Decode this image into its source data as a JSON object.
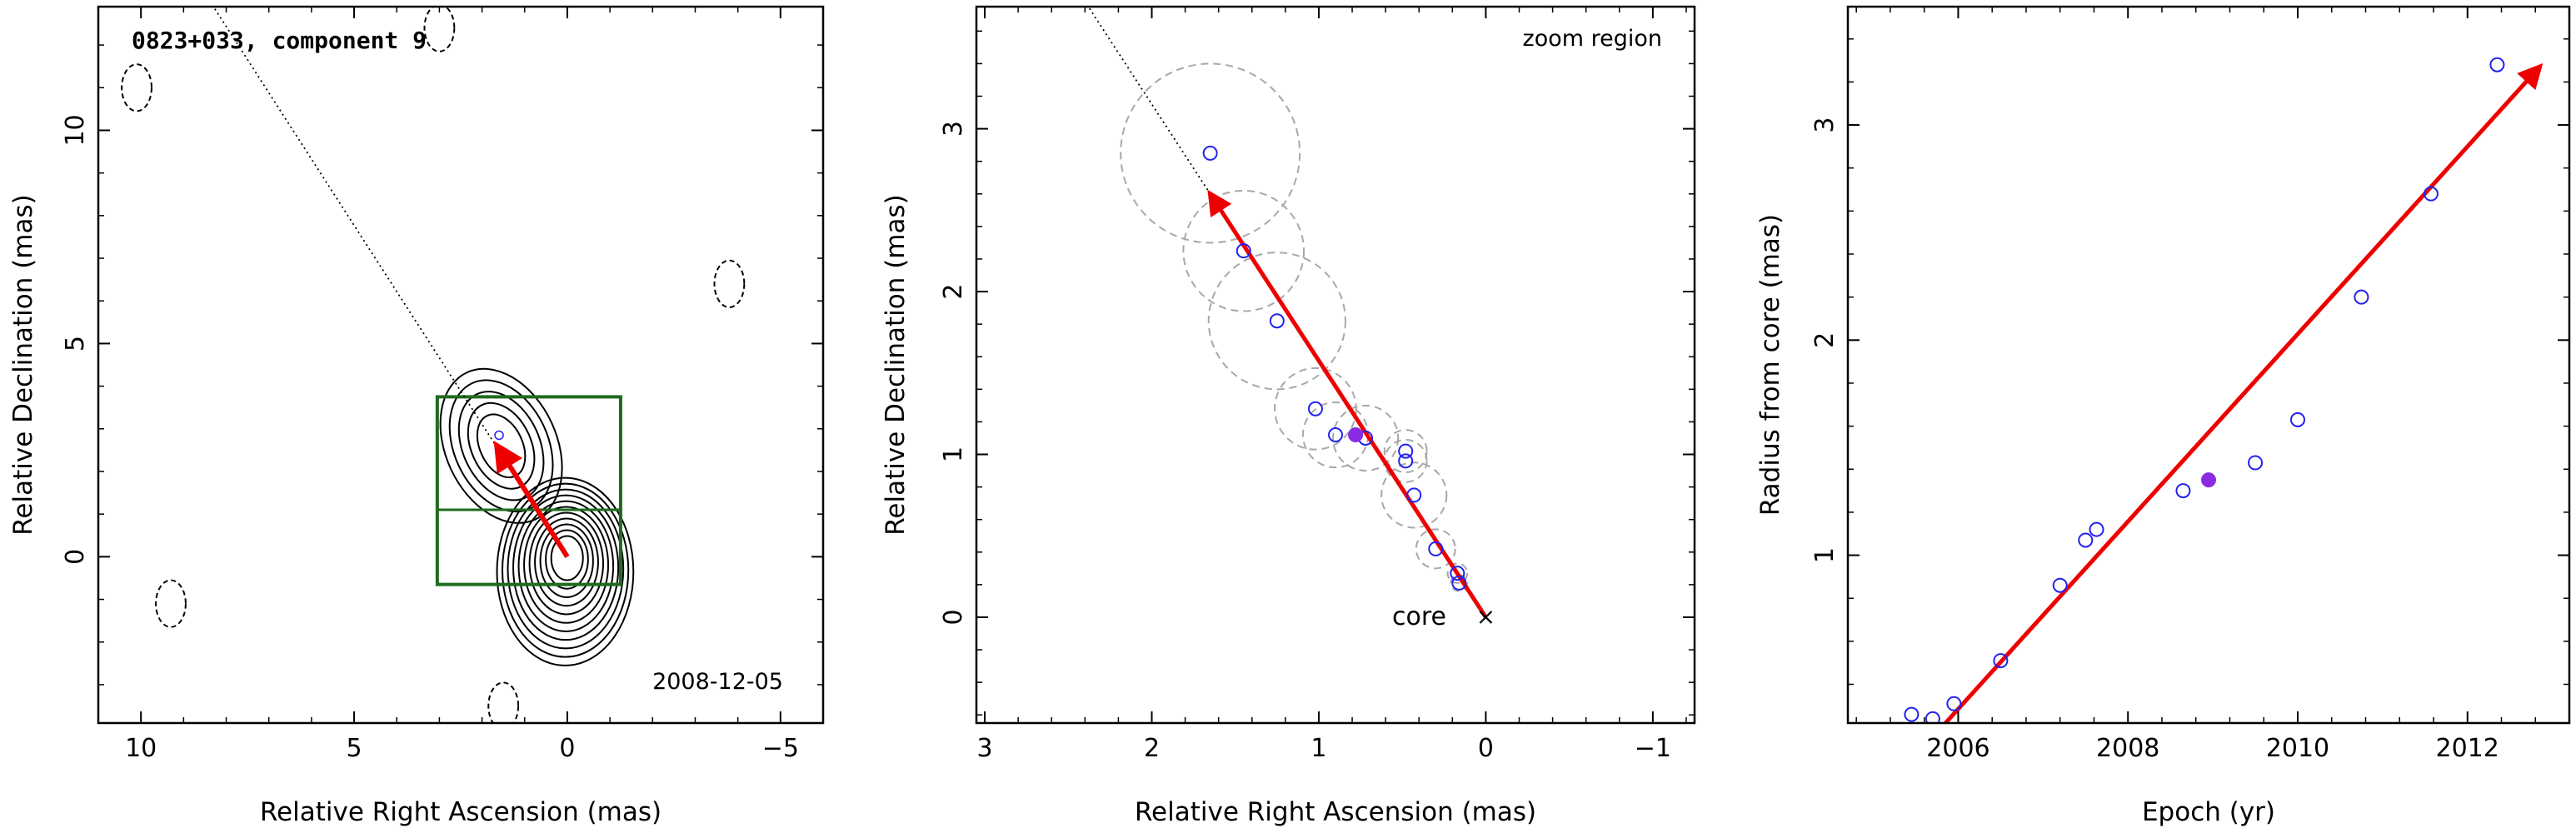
{
  "chart_data": [
    {
      "type": "contour",
      "title": "0823+033, component 9",
      "date": "2008-12-05",
      "xlabel": "Relative Right Ascension (mas)",
      "ylabel": "Relative Declination (mas)",
      "xlim": [
        11,
        -6
      ],
      "ylim": [
        -3.9,
        12.9
      ],
      "xticks": [
        10,
        5,
        0,
        -5
      ],
      "yticks": [
        0,
        5,
        10
      ],
      "xticklabels": [
        "10",
        "5",
        "0",
        "−5"
      ],
      "yticklabels": [
        "0",
        "5",
        "10"
      ],
      "contour_levels": 11,
      "contour_peak": [
        0,
        0
      ],
      "negative_contours": [
        {
          "x": 10.1,
          "y": 11.0
        },
        {
          "x": 3.0,
          "y": 12.4
        },
        {
          "x": 9.3,
          "y": -1.1
        },
        {
          "x": 1.5,
          "y": -3.5
        },
        {
          "x": -3.8,
          "y": 6.4
        }
      ],
      "zoom_box": {
        "x_range": [
          3.05,
          -1.25
        ],
        "y_range": [
          -0.65,
          3.75
        ],
        "midline_y": 1.1
      },
      "trajectory_line": {
        "from": [
          0,
          0
        ],
        "to": [
          8.3,
          12.9
        ],
        "style": "dotted"
      },
      "velocity_vector": {
        "from": [
          0,
          0
        ],
        "to": [
          1.65,
          2.6
        ],
        "color": "#ee0000"
      },
      "component_marker": [
        1.6,
        2.85
      ],
      "colors": {
        "contours": "#000000",
        "zoom_box": "#1f6b1f",
        "vector": "#ee0000"
      }
    },
    {
      "type": "scatter",
      "annotation": "zoom region",
      "core_label": "core",
      "xlabel": "Relative Right Ascension (mas)",
      "ylabel": "Relative Declination (mas)",
      "xlim": [
        3.05,
        -1.25
      ],
      "ylim": [
        -0.65,
        3.75
      ],
      "xticks": [
        3,
        2,
        1,
        0,
        -1
      ],
      "yticks": [
        0,
        1,
        2,
        3
      ],
      "xticklabels": [
        "3",
        "2",
        "1",
        "0",
        "−1"
      ],
      "yticklabels": [
        "0",
        "1",
        "2",
        "3"
      ],
      "points": [
        {
          "x": 1.65,
          "y": 2.85,
          "err": 0.55
        },
        {
          "x": 1.45,
          "y": 2.25,
          "err": 0.37
        },
        {
          "x": 1.25,
          "y": 1.82,
          "err": 0.42
        },
        {
          "x": 1.02,
          "y": 1.28,
          "err": 0.25
        },
        {
          "x": 0.9,
          "y": 1.12,
          "err": 0.2
        },
        {
          "x": 0.72,
          "y": 1.1,
          "err": 0.2
        },
        {
          "x": 0.48,
          "y": 1.02,
          "err": 0.13
        },
        {
          "x": 0.48,
          "y": 0.96,
          "err": 0.13
        },
        {
          "x": 0.43,
          "y": 0.75,
          "err": 0.2
        },
        {
          "x": 0.3,
          "y": 0.42,
          "err": 0.12
        },
        {
          "x": 0.17,
          "y": 0.27,
          "err": 0.06
        },
        {
          "x": 0.16,
          "y": 0.21,
          "err": 0.05
        }
      ],
      "highlight_point": {
        "x": 0.78,
        "y": 1.12
      },
      "velocity_vector": {
        "from": [
          0,
          0
        ],
        "to": [
          1.65,
          2.6
        ]
      },
      "trajectory_line": {
        "from": [
          0,
          0
        ],
        "to": [
          2.38,
          3.75
        ]
      },
      "colors": {
        "points": "#2222ee",
        "highlight": "#8a2be2",
        "error_circles": "#a8a8a8",
        "vector": "#ee0000"
      }
    },
    {
      "type": "scatter",
      "xlabel": "Epoch (yr)",
      "ylabel": "Radius from core (mas)",
      "xlim": [
        2004.7,
        2013.2
      ],
      "ylim": [
        0.22,
        3.55
      ],
      "xticks": [
        2006,
        2008,
        2010,
        2012
      ],
      "yticks": [
        1,
        2,
        3
      ],
      "xticklabels": [
        "2006",
        "2008",
        "2010",
        "2012"
      ],
      "yticklabels": [
        "1",
        "2",
        "3"
      ],
      "points": [
        {
          "x": 2005.45,
          "y": 0.26
        },
        {
          "x": 2005.7,
          "y": 0.24
        },
        {
          "x": 2005.95,
          "y": 0.31
        },
        {
          "x": 2006.5,
          "y": 0.51
        },
        {
          "x": 2007.2,
          "y": 0.86
        },
        {
          "x": 2007.5,
          "y": 1.07
        },
        {
          "x": 2007.63,
          "y": 1.12
        },
        {
          "x": 2008.65,
          "y": 1.3
        },
        {
          "x": 2009.5,
          "y": 1.43
        },
        {
          "x": 2010.0,
          "y": 1.63
        },
        {
          "x": 2010.75,
          "y": 2.2
        },
        {
          "x": 2011.57,
          "y": 2.68
        },
        {
          "x": 2012.35,
          "y": 3.28
        }
      ],
      "highlight_point": {
        "x": 2008.95,
        "y": 1.35
      },
      "fit_line": {
        "from": [
          2005.85,
          0.22
        ],
        "to": [
          2012.85,
          3.27
        ]
      },
      "colors": {
        "points": "#2222ee",
        "highlight": "#8a2be2",
        "fit": "#ee0000"
      }
    }
  ]
}
